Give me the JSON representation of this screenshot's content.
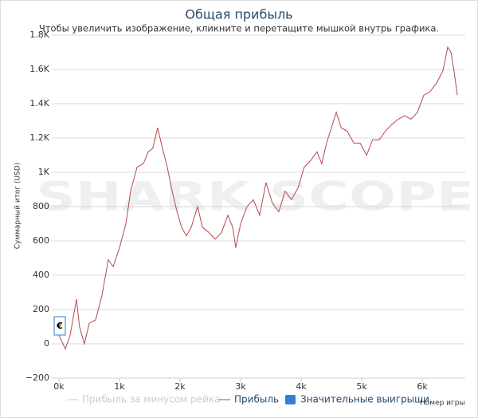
{
  "chart_data": {
    "type": "line",
    "title": "Общая прибыль",
    "subtitle": "Чтобы увеличить изображение, кликните и перетащите мышкой внутрь графика.",
    "y_label": "Суммарный итог (USD)",
    "x_label": "Номер игры",
    "watermark": "SHARK SCOPE",
    "currency_button": "€",
    "x": [
      0,
      105,
      184,
      290,
      340,
      420,
      500,
      605,
      710,
      815,
      895,
      1000,
      1105,
      1185,
      1290,
      1395,
      1475,
      1550,
      1630,
      1710,
      1790,
      1870,
      1950,
      2025,
      2105,
      2185,
      2290,
      2370,
      2475,
      2580,
      2685,
      2790,
      2870,
      2920,
      3000,
      3105,
      3210,
      3315,
      3420,
      3525,
      3630,
      3735,
      3840,
      3950,
      4050,
      4160,
      4260,
      4340,
      4420,
      4500,
      4580,
      4660,
      4760,
      4870,
      4975,
      5080,
      5180,
      5290,
      5390,
      5500,
      5605,
      5710,
      5815,
      5920,
      6025,
      6130,
      6235,
      6340,
      6420,
      6475,
      6525,
      6580
    ],
    "series": [
      {
        "name": "Прибыль",
        "color": "#b5494a",
        "values": [
          50,
          -30,
          50,
          260,
          100,
          0,
          120,
          140,
          280,
          490,
          450,
          560,
          700,
          890,
          1030,
          1050,
          1120,
          1140,
          1260,
          1140,
          1030,
          890,
          770,
          680,
          630,
          680,
          800,
          680,
          650,
          610,
          650,
          750,
          680,
          560,
          700,
          800,
          840,
          750,
          940,
          820,
          770,
          890,
          840,
          910,
          1030,
          1070,
          1120,
          1050,
          1170,
          1260,
          1350,
          1260,
          1240,
          1170,
          1170,
          1100,
          1190,
          1190,
          1240,
          1280,
          1310,
          1330,
          1310,
          1350,
          1450,
          1470,
          1520,
          1590,
          1730,
          1700,
          1590,
          1450
        ]
      }
    ],
    "legend": [
      {
        "name": "Прибыль за минусом рейка",
        "color": "#cccccc",
        "symbol": "line",
        "hidden": true
      },
      {
        "series": 0,
        "symbol": "line"
      },
      {
        "name": "Значительные выигрыши",
        "color": "#2f7ed8",
        "symbol": "square",
        "hidden": false
      }
    ],
    "xlim": [
      -118,
      6710
    ],
    "ylim": [
      -200,
      1800
    ],
    "xticks": [
      {
        "value": 0,
        "label": "0k"
      },
      {
        "value": 1000,
        "label": "1k"
      },
      {
        "value": 2000,
        "label": "2k"
      },
      {
        "value": 3000,
        "label": "3k"
      },
      {
        "value": 4000,
        "label": "4k"
      },
      {
        "value": 5000,
        "label": "5k"
      },
      {
        "value": 6000,
        "label": "6k"
      }
    ],
    "yticks": [
      {
        "value": -200,
        "label": "−200"
      },
      0,
      200,
      400,
      600,
      800,
      {
        "value": 1000,
        "label": "1K"
      },
      {
        "value": 1200,
        "label": "1.2K"
      },
      {
        "value": 1400,
        "label": "1.4K"
      },
      {
        "value": 1600,
        "label": "1.6K"
      },
      {
        "value": 1800,
        "label": "1.8K"
      }
    ],
    "grid": true
  }
}
